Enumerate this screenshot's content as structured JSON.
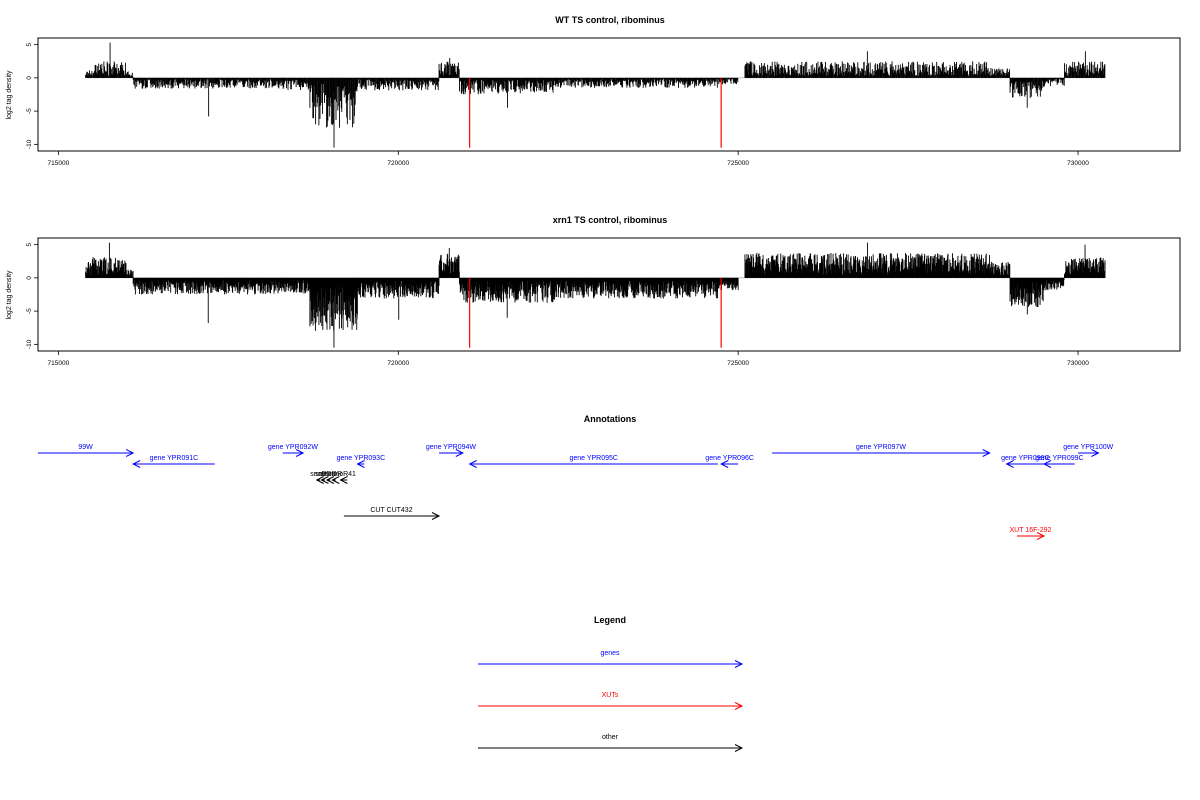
{
  "colors": {
    "bars": "#000000",
    "marker": "#ff0000",
    "genes": "#0000ff",
    "xuts": "#ff0000",
    "other": "#000000"
  },
  "chart_data": [
    {
      "type": "bar",
      "title": "WT TS control, ribominus",
      "ylabel": "log2 tag density",
      "xlim": [
        714700,
        731500
      ],
      "ylim": [
        -11,
        6
      ],
      "xticks": [
        715000,
        720000,
        725000,
        730000
      ],
      "yticks": [
        5,
        0,
        -5,
        -10
      ],
      "data_range": [
        715400,
        730400
      ],
      "markers_x": [
        721050,
        724750
      ],
      "profile": [
        {
          "range": [
            715400,
            715500
          ],
          "sign": 1,
          "level": 1.0
        },
        {
          "range": [
            715500,
            716000
          ],
          "sign": 1,
          "level": 2.0,
          "peak": 5.3
        },
        {
          "range": [
            716000,
            716100
          ],
          "sign": 1,
          "level": 0.8
        },
        {
          "range": [
            716100,
            718300
          ],
          "sign": -1,
          "level": 1.3,
          "peak": -5.8
        },
        {
          "range": [
            718300,
            718700
          ],
          "sign": -1,
          "level": 1.5
        },
        {
          "range": [
            718700,
            719400
          ],
          "sign": -1,
          "level": 6.0,
          "peak": -10.5
        },
        {
          "range": [
            719400,
            720600
          ],
          "sign": -1,
          "level": 1.5
        },
        {
          "range": [
            720600,
            720900
          ],
          "sign": 1,
          "level": 2.0,
          "peak": 3.0
        },
        {
          "range": [
            720900,
            722300
          ],
          "sign": -1,
          "level": 2.0,
          "peak": -4.5
        },
        {
          "range": [
            722300,
            724700
          ],
          "sign": -1,
          "level": 1.2
        },
        {
          "range": [
            724700,
            725000
          ],
          "sign": -1,
          "level": 0.8
        },
        {
          "range": [
            725100,
            728700
          ],
          "sign": 1,
          "level": 2.0,
          "peak": 4.0
        },
        {
          "range": [
            728700,
            729000
          ],
          "sign": 1,
          "level": 1.2
        },
        {
          "range": [
            729000,
            729500
          ],
          "sign": -1,
          "level": 2.5,
          "peak": -4.5
        },
        {
          "range": [
            729500,
            729800
          ],
          "sign": -1,
          "level": 1.0
        },
        {
          "range": [
            729800,
            730400
          ],
          "sign": 1,
          "level": 2.0,
          "peak": 4.0
        }
      ]
    },
    {
      "type": "bar",
      "title": "xrn1 TS control, ribominus",
      "ylabel": "log2 tag density",
      "xlim": [
        714700,
        731500
      ],
      "ylim": [
        -11,
        6
      ],
      "xticks": [
        715000,
        720000,
        725000,
        730000
      ],
      "yticks": [
        5,
        0,
        -5,
        -10
      ],
      "data_range": [
        715400,
        730400
      ],
      "markers_x": [
        721050,
        724750
      ],
      "profile": [
        {
          "range": [
            715400,
            715500
          ],
          "sign": 1,
          "level": 2.0
        },
        {
          "range": [
            715500,
            716000
          ],
          "sign": 1,
          "level": 2.5,
          "peak": 5.3
        },
        {
          "range": [
            716000,
            716100
          ],
          "sign": 1,
          "level": 1.0
        },
        {
          "range": [
            716100,
            718300
          ],
          "sign": -1,
          "level": 2.0,
          "peak": -6.8
        },
        {
          "range": [
            718300,
            718700
          ],
          "sign": -1,
          "level": 2.0
        },
        {
          "range": [
            718700,
            719400
          ],
          "sign": -1,
          "level": 6.5,
          "peak": -10.5
        },
        {
          "range": [
            719400,
            720600
          ],
          "sign": -1,
          "level": 2.5,
          "peak": -6.3
        },
        {
          "range": [
            720600,
            720900
          ],
          "sign": 1,
          "level": 3.0,
          "peak": 4.5
        },
        {
          "range": [
            720900,
            722300
          ],
          "sign": -1,
          "level": 3.0,
          "peak": -6.0
        },
        {
          "range": [
            722300,
            724700
          ],
          "sign": -1,
          "level": 2.5
        },
        {
          "range": [
            724700,
            725000
          ],
          "sign": -1,
          "level": 1.5
        },
        {
          "range": [
            725100,
            728700
          ],
          "sign": 1,
          "level": 3.0,
          "peak": 5.3
        },
        {
          "range": [
            728700,
            729000
          ],
          "sign": 1,
          "level": 2.0
        },
        {
          "range": [
            729000,
            729500
          ],
          "sign": -1,
          "level": 3.5,
          "peak": -5.5
        },
        {
          "range": [
            729500,
            729800
          ],
          "sign": -1,
          "level": 1.5
        },
        {
          "range": [
            729800,
            730400
          ],
          "sign": 1,
          "level": 2.5,
          "peak": 5.0
        }
      ]
    }
  ],
  "annotations": {
    "title": "Annotations",
    "features": [
      {
        "label": "99W",
        "kind": "gene",
        "start": 714700,
        "end": 716100,
        "strand": "+",
        "row": 0
      },
      {
        "label": "gene YPR091C",
        "kind": "gene",
        "start": 717300,
        "end": 716100,
        "strand": "-",
        "row": 1
      },
      {
        "label": "gene YPR092W",
        "kind": "gene",
        "start": 718300,
        "end": 718600,
        "strand": "+",
        "row": 0
      },
      {
        "label": "gene YPR093C",
        "kind": "gene",
        "start": 719500,
        "end": 719400,
        "strand": "-",
        "row": 1
      },
      {
        "label": "gene YPR094W",
        "kind": "gene",
        "start": 720600,
        "end": 720950,
        "strand": "+",
        "row": 0
      },
      {
        "label": "gene YPR095C",
        "kind": "gene",
        "start": 724700,
        "end": 721050,
        "strand": "-",
        "row": 1
      },
      {
        "label": "gene YPR096C",
        "kind": "gene",
        "start": 725000,
        "end": 724750,
        "strand": "-",
        "row": 1
      },
      {
        "label": "gene YPR097W",
        "kind": "gene",
        "start": 725500,
        "end": 728700,
        "strand": "+",
        "row": 0
      },
      {
        "label": "gene YPR098C",
        "kind": "gene",
        "start": 729500,
        "end": 728950,
        "strand": "-",
        "row": 1
      },
      {
        "label": "gene YPR099C",
        "kind": "gene",
        "start": 729950,
        "end": 729500,
        "strand": "-",
        "row": 1
      },
      {
        "label": "gene YPR100W",
        "kind": "gene",
        "start": 730000,
        "end": 730300,
        "strand": "+",
        "row": 0
      },
      {
        "label": "snoR",
        "kind": "other",
        "start": 718850,
        "end": 718800,
        "strand": "-",
        "row": 2
      },
      {
        "label": "snoR",
        "kind": "other",
        "start": 718920,
        "end": 718870,
        "strand": "-",
        "row": 2
      },
      {
        "label": "snoR",
        "kind": "other",
        "start": 719000,
        "end": 718950,
        "strand": "-",
        "row": 2
      },
      {
        "label": "snoR",
        "kind": "other",
        "start": 719080,
        "end": 719030,
        "strand": "-",
        "row": 2
      },
      {
        "label": "snoR41",
        "kind": "other",
        "start": 719250,
        "end": 719150,
        "strand": "-",
        "row": 2
      },
      {
        "label": "CUT CUT432",
        "kind": "other",
        "start": 719200,
        "end": 720600,
        "strand": "+",
        "row": 3
      },
      {
        "label": "XUT 16F-292",
        "kind": "xut",
        "start": 729100,
        "end": 729500,
        "strand": "+",
        "row": 4
      }
    ]
  },
  "legend": {
    "title": "Legend",
    "items": [
      {
        "label": "genes",
        "kind": "gene"
      },
      {
        "label": "XUTs",
        "kind": "xut"
      },
      {
        "label": "other",
        "kind": "other"
      }
    ]
  }
}
